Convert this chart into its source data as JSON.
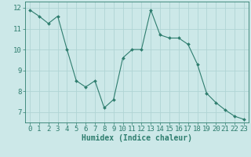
{
  "x": [
    0,
    1,
    2,
    3,
    4,
    5,
    6,
    7,
    8,
    9,
    10,
    11,
    12,
    13,
    14,
    15,
    16,
    17,
    18,
    19,
    20,
    21,
    22,
    23
  ],
  "y": [
    11.9,
    11.6,
    11.25,
    11.6,
    10.0,
    8.5,
    8.2,
    8.5,
    7.2,
    7.6,
    9.6,
    10.0,
    10.0,
    11.9,
    10.7,
    10.55,
    10.55,
    10.25,
    9.3,
    7.9,
    7.45,
    7.1,
    6.8,
    6.65
  ],
  "line_color": "#2e7d6e",
  "marker": "D",
  "marker_size": 2,
  "bg_color": "#cce8e8",
  "grid_color": "#b0d4d4",
  "xlabel": "Humidex (Indice chaleur)",
  "ylim": [
    6.5,
    12.3
  ],
  "xlim": [
    -0.5,
    23.5
  ],
  "yticks": [
    7,
    8,
    9,
    10,
    11,
    12
  ],
  "xticks": [
    0,
    1,
    2,
    3,
    4,
    5,
    6,
    7,
    8,
    9,
    10,
    11,
    12,
    13,
    14,
    15,
    16,
    17,
    18,
    19,
    20,
    21,
    22,
    23
  ],
  "tick_color": "#2e7d6e",
  "label_color": "#2e7d6e",
  "font_size_xlabel": 7,
  "font_size_ticks": 6.5
}
